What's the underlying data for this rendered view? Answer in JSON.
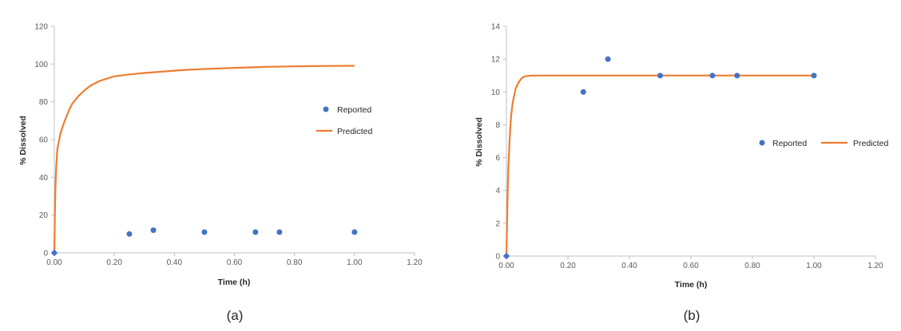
{
  "colors": {
    "reported": "#4472C4",
    "predicted": "#ED7D31",
    "axis": "#BFBFBF",
    "text": "#595959"
  },
  "chart_data": [
    {
      "type": "scatter",
      "panel": "(a)",
      "xlabel": "Time (h)",
      "ylabel": "% Dissolved",
      "xlim": [
        0,
        1.2
      ],
      "ylim": [
        0,
        120
      ],
      "xticks": [
        "0.00",
        "0.20",
        "0.40",
        "0.60",
        "0.80",
        "1.00",
        "1.20"
      ],
      "yticks": [
        "0",
        "20",
        "40",
        "60",
        "80",
        "100",
        "120"
      ],
      "grid": false,
      "legend_position": "right",
      "series": [
        {
          "name": "Reported",
          "type": "scatter",
          "x": [
            0,
            0.25,
            0.33,
            0.5,
            0.67,
            0.75,
            1.0
          ],
          "y": [
            0,
            10,
            12,
            11,
            11,
            11,
            11
          ]
        },
        {
          "name": "Predicted",
          "type": "line",
          "x": [
            0,
            0.003,
            0.006,
            0.01,
            0.02,
            0.03,
            0.04,
            0.05,
            0.06,
            0.08,
            0.1,
            0.12,
            0.15,
            0.2,
            0.25,
            0.3,
            0.4,
            0.45,
            0.5,
            0.6,
            0.7,
            0.8,
            0.9,
            1.0
          ],
          "y": [
            0,
            30,
            45,
            55,
            63,
            68,
            72,
            76,
            79,
            83,
            86,
            88.5,
            91,
            93.5,
            94.5,
            95.3,
            96.5,
            97,
            97.4,
            98,
            98.5,
            98.8,
            99,
            99.1
          ]
        }
      ]
    },
    {
      "type": "scatter",
      "panel": "(b)",
      "xlabel": "Time (h)",
      "ylabel": "% Dissolved",
      "xlim": [
        0,
        1.2
      ],
      "ylim": [
        0,
        14
      ],
      "xticks": [
        "0.00",
        "0.20",
        "0.40",
        "0.60",
        "0.80",
        "1.00",
        "1.20"
      ],
      "yticks": [
        "0",
        "2",
        "4",
        "6",
        "8",
        "10",
        "12",
        "14"
      ],
      "grid": false,
      "legend_position": "right",
      "series": [
        {
          "name": "Reported",
          "type": "scatter",
          "x": [
            0,
            0.25,
            0.33,
            0.5,
            0.67,
            0.75,
            1.0
          ],
          "y": [
            0,
            10,
            12,
            11,
            11,
            11,
            11
          ]
        },
        {
          "name": "Predicted",
          "type": "line",
          "x": [
            0,
            0.003,
            0.006,
            0.01,
            0.015,
            0.02,
            0.03,
            0.04,
            0.05,
            0.06,
            0.08,
            0.1,
            0.2,
            0.4,
            0.6,
            0.8,
            1.0
          ],
          "y": [
            0,
            3,
            5.2,
            7,
            8.5,
            9.3,
            10.2,
            10.6,
            10.85,
            10.95,
            10.99,
            11,
            11,
            11,
            11,
            11,
            11
          ]
        }
      ]
    }
  ]
}
